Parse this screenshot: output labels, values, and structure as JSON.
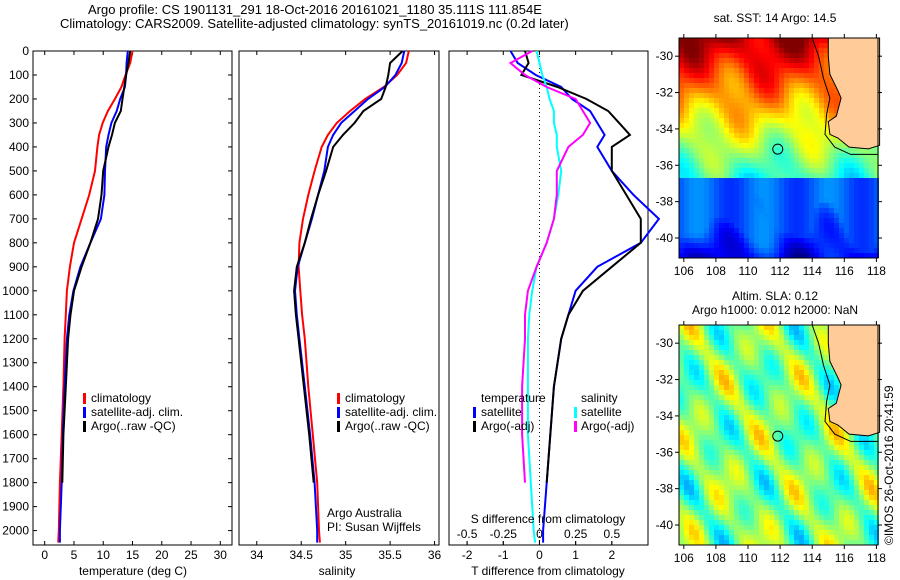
{
  "header": {
    "line1": "Argo profile: CS 1901131_291 18-Oct-2016 20161021_1180 35.111S 111.854E",
    "line2": "Climatology: CARS2009. Satellite-adjusted climatology: synTS_20161019.nc (0.2d later)"
  },
  "colors": {
    "climatology": "#ff0000",
    "satellite": "#0000ff",
    "argo": "#000000",
    "sal_satellite": "#00ffff",
    "sal_argo": "#ff00ff",
    "land": "#ffcc99"
  },
  "chart_data": [
    {
      "type": "line",
      "name": "temperature-profile",
      "xlabel": "temperature (deg C)",
      "ylabel": "",
      "xlim": [
        -2,
        32
      ],
      "ylim": [
        2060,
        0
      ],
      "xticks": [
        0,
        5,
        10,
        15,
        20,
        25,
        30
      ],
      "yticks": [
        0,
        100,
        200,
        300,
        400,
        500,
        600,
        700,
        800,
        900,
        1000,
        1100,
        1200,
        1300,
        1400,
        1500,
        1600,
        1700,
        1800,
        1900,
        2000
      ],
      "legend": [
        "climatology",
        "satellite-adj. clim.",
        "Argo(..raw -QC)"
      ],
      "legend_placement": "middle-left",
      "depth": [
        0,
        50,
        100,
        150,
        200,
        250,
        300,
        350,
        400,
        500,
        600,
        700,
        800,
        900,
        1000,
        1100,
        1200,
        1400,
        1600,
        1800,
        2000,
        2050
      ],
      "series": [
        {
          "name": "climatology",
          "values": [
            15.0,
            14.6,
            13.8,
            13.1,
            12.0,
            10.8,
            9.9,
            9.3,
            9.0,
            8.6,
            7.6,
            6.3,
            5.0,
            4.3,
            3.8,
            3.6,
            3.4,
            3.2,
            2.9,
            2.6,
            2.4,
            2.3
          ]
        },
        {
          "name": "satellite-adj. clim.",
          "values": [
            14.2,
            14.0,
            13.9,
            13.7,
            12.9,
            12.3,
            11.4,
            10.9,
            10.5,
            10.3,
            10.2,
            9.6,
            7.8,
            6.1,
            4.9,
            4.2,
            3.8,
            3.4,
            3.1,
            2.9,
            2.6,
            2.6
          ]
        },
        {
          "name": "Argo(..raw -QC)",
          "values": [
            14.6,
            14.3,
            13.9,
            13.6,
            13.3,
            13.0,
            12.0,
            11.5,
            10.9,
            10.0,
            9.7,
            9.1,
            7.8,
            6.3,
            5.0,
            4.4,
            4.0,
            3.6,
            3.2,
            3.0,
            null,
            null
          ]
        }
      ]
    },
    {
      "type": "line",
      "name": "salinity-profile",
      "xlabel": "salinity",
      "xlim": [
        33.8,
        36.05
      ],
      "ylim": [
        2060,
        0
      ],
      "xticks": [
        34,
        34.5,
        35,
        35.5,
        36
      ],
      "legend": [
        "climatology",
        "satellite-adj. clim.",
        "Argo(..raw -QC)"
      ],
      "legend_placement": "middle-right",
      "annotation": [
        "Argo Australia",
        "PI: Susan Wijffels"
      ],
      "depth": [
        0,
        50,
        100,
        150,
        200,
        250,
        300,
        350,
        400,
        500,
        600,
        700,
        800,
        900,
        1000,
        1100,
        1200,
        1400,
        1600,
        1800,
        2000,
        2050
      ],
      "series": [
        {
          "name": "climatology",
          "values": [
            35.71,
            35.68,
            35.58,
            35.43,
            35.22,
            35.05,
            34.9,
            34.8,
            34.73,
            34.65,
            34.58,
            34.52,
            34.48,
            34.47,
            34.49,
            34.51,
            34.54,
            34.58,
            34.63,
            34.68,
            34.7,
            34.71
          ]
        },
        {
          "name": "satellite-adj. clim.",
          "values": [
            35.66,
            35.63,
            35.56,
            35.44,
            35.25,
            35.1,
            34.95,
            34.86,
            34.8,
            34.76,
            34.69,
            34.62,
            34.54,
            34.46,
            34.43,
            34.45,
            34.48,
            34.54,
            34.6,
            34.65,
            34.68,
            34.68
          ]
        },
        {
          "name": "Argo(..raw -QC)",
          "values": [
            35.64,
            35.5,
            35.48,
            35.45,
            35.4,
            35.2,
            35.1,
            34.97,
            34.86,
            34.78,
            34.69,
            34.61,
            34.54,
            34.45,
            34.42,
            34.44,
            34.47,
            34.53,
            34.59,
            34.64,
            null,
            null
          ]
        }
      ]
    },
    {
      "type": "line",
      "name": "difference-profile",
      "xlabel": "T difference from climatology",
      "xlabel_top": "S difference from climatology",
      "xlim": [
        -2.5,
        3.0
      ],
      "ylim": [
        2060,
        0
      ],
      "xticks": [
        -2,
        -1,
        0,
        1,
        2
      ],
      "xticks_S": [
        -0.5,
        -0.25,
        0,
        0.25,
        0.5
      ],
      "legend_temperature": {
        "title": "temperature",
        "items": [
          "satellite",
          "Argo(-adj)"
        ]
      },
      "legend_salinity": {
        "title": "salinity",
        "items": [
          "satellite",
          "Argo(-adj)"
        ]
      },
      "depth": [
        0,
        50,
        100,
        150,
        200,
        250,
        300,
        350,
        400,
        500,
        600,
        700,
        800,
        900,
        1000,
        1100,
        1200,
        1400,
        1600,
        1800,
        2000,
        2050
      ],
      "series": [
        {
          "name": "temperature satellite",
          "values": [
            -0.8,
            -0.6,
            -0.1,
            0.6,
            0.9,
            1.4,
            1.6,
            1.8,
            1.6,
            2.0,
            2.6,
            3.3,
            2.8,
            1.6,
            1.0,
            0.8,
            0.6,
            0.4,
            0.3,
            0.2,
            0.1,
            0.1
          ]
        },
        {
          "name": "temperature Argo(-adj)",
          "values": [
            -0.4,
            -0.3,
            -0.5,
            0.5,
            1.3,
            1.9,
            2.2,
            2.5,
            2.0,
            2.0,
            2.4,
            2.8,
            2.8,
            2.0,
            1.2,
            0.8,
            0.6,
            0.4,
            0.3,
            0.2,
            null,
            null
          ]
        },
        {
          "name": "salinity satellite",
          "values": [
            -0.02,
            0.0,
            0.02,
            0.05,
            0.07,
            0.1,
            0.1,
            0.12,
            0.12,
            0.15,
            0.13,
            0.1,
            0.05,
            -0.02,
            -0.05,
            -0.07,
            -0.08,
            -0.08,
            -0.08,
            -0.06,
            -0.04,
            -0.03
          ]
        },
        {
          "name": "salinity Argo(-adj)",
          "values": [
            -0.05,
            -0.2,
            -0.1,
            0.05,
            0.25,
            0.3,
            0.35,
            0.3,
            0.2,
            0.12,
            0.12,
            0.1,
            0.05,
            -0.02,
            -0.08,
            -0.1,
            -0.1,
            -0.12,
            -0.12,
            -0.1,
            null,
            null
          ]
        }
      ]
    },
    {
      "type": "heatmap",
      "name": "sst-map",
      "title": "sat. SST: 14 Argo: 14.5",
      "xlim": [
        105.7,
        118.1
      ],
      "ylim": [
        -41.1,
        -29.0
      ],
      "xticks": [
        106,
        108,
        110,
        112,
        114,
        116,
        118
      ],
      "yticks": [
        -30,
        -32,
        -34,
        -36,
        -38,
        -40
      ],
      "marker": {
        "lon": 111.854,
        "lat": -35.111
      },
      "colormap": "jet"
    },
    {
      "type": "heatmap",
      "name": "sla-map",
      "title": "Altim. SLA: 0.12",
      "subtitle": "Argo h1000: 0.012 h2000: NaN",
      "xlim": [
        105.7,
        118.1
      ],
      "ylim": [
        -41.1,
        -29.0
      ],
      "xticks": [
        106,
        108,
        110,
        112,
        114,
        116,
        118
      ],
      "yticks": [
        -30,
        -32,
        -34,
        -36,
        -38,
        -40
      ],
      "marker": {
        "lon": 111.854,
        "lat": -35.111
      },
      "colormap": "jet"
    }
  ],
  "credit": "©IMOS 26-Oct-2016 20:41:59"
}
